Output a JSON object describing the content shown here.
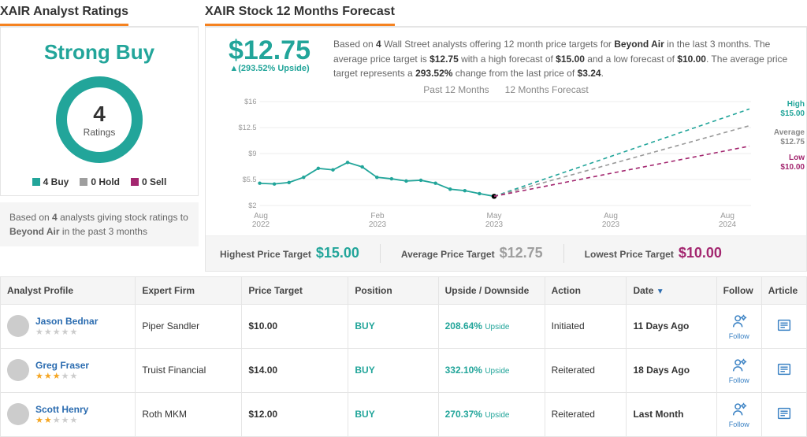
{
  "left": {
    "title": "XAIR Analyst Ratings",
    "verdict": "Strong Buy",
    "ratings_count": "4",
    "ratings_label": "Ratings",
    "legend": {
      "buy": "4 Buy",
      "hold": "0 Hold",
      "sell": "0 Sell"
    },
    "note_prefix": "Based on ",
    "note_count": "4",
    "note_mid": " analysts giving stock ratings to ",
    "note_company": "Beyond Air",
    "note_suffix": " in the past 3 months"
  },
  "right": {
    "title": "XAIR Stock 12 Months Forecast",
    "price": "$12.75",
    "upside": "▲(293.52% Upside)",
    "desc_parts": {
      "p1": "Based on ",
      "analysts": "4",
      "p2": " Wall Street analysts offering 12 month price targets for ",
      "company": "Beyond Air",
      "p3": " in the last 3 months. The average price target is ",
      "avg": "$12.75",
      "p4": " with a high forecast of ",
      "high": "$15.00",
      "p5": " and a low forecast of ",
      "low": "$10.00",
      "p6": ". The average price target represents a ",
      "pct": "293.52%",
      "p7": " change from the last price of ",
      "last": "$3.24",
      "p8": "."
    },
    "chart": {
      "past_label": "Past 12 Months",
      "forecast_label": "12 Months Forecast",
      "yticks": [
        "$16",
        "$12.5",
        "$9",
        "$5.5",
        "$2"
      ],
      "ylim": [
        2,
        16
      ],
      "xticks": [
        "Aug 2022",
        "Feb 2023",
        "May 2023",
        "Aug 2023",
        "Aug 2024"
      ],
      "past_points": [
        5.0,
        4.9,
        5.1,
        5.8,
        7.0,
        6.8,
        7.8,
        7.2,
        5.8,
        5.6,
        5.3,
        5.4,
        5.0,
        4.2,
        4.0,
        3.6,
        3.24
      ],
      "forecast": {
        "high": 15.0,
        "avg": 12.75,
        "low": 10.0
      },
      "line_color": "#22a59a",
      "high_color": "#22a59a",
      "avg_color": "#999999",
      "low_color": "#a3266f",
      "grid_color": "#eeeeee",
      "labels": {
        "high_lbl": "High",
        "high_val": "$15.00",
        "avg_lbl": "Average",
        "avg_val": "$12.75",
        "low_lbl": "Low",
        "low_val": "$10.00"
      }
    },
    "targets": {
      "high_lbl": "Highest Price Target",
      "high_val": "$15.00",
      "avg_lbl": "Average Price Target",
      "avg_val": "$12.75",
      "low_lbl": "Lowest Price Target",
      "low_val": "$10.00"
    }
  },
  "colors": {
    "buy": "#22a59a",
    "hold": "#9e9e9e",
    "sell": "#a3266f",
    "high": "#22a59a",
    "avg": "#9e9e9e",
    "low": "#a3266f"
  },
  "table": {
    "headers": {
      "profile": "Analyst Profile",
      "firm": "Expert Firm",
      "target": "Price Target",
      "position": "Position",
      "upside": "Upside / Downside",
      "action": "Action",
      "date": "Date",
      "follow": "Follow",
      "article": "Article"
    },
    "rows": [
      {
        "name": "Jason Bednar",
        "stars": 0,
        "firm": "Piper Sandler",
        "target": "$10.00",
        "position": "BUY",
        "upside_val": "208.64%",
        "upside_word": "Upside",
        "action": "Initiated",
        "date": "11 Days Ago"
      },
      {
        "name": "Greg Fraser",
        "stars": 3,
        "firm": "Truist Financial",
        "target": "$14.00",
        "position": "BUY",
        "upside_val": "332.10%",
        "upside_word": "Upside",
        "action": "Reiterated",
        "date": "18 Days Ago"
      },
      {
        "name": "Scott Henry",
        "stars": 2,
        "firm": "Roth MKM",
        "target": "$12.00",
        "position": "BUY",
        "upside_val": "270.37%",
        "upside_word": "Upside",
        "action": "Reiterated",
        "date": "Last Month"
      }
    ],
    "follow_label": "Follow"
  }
}
